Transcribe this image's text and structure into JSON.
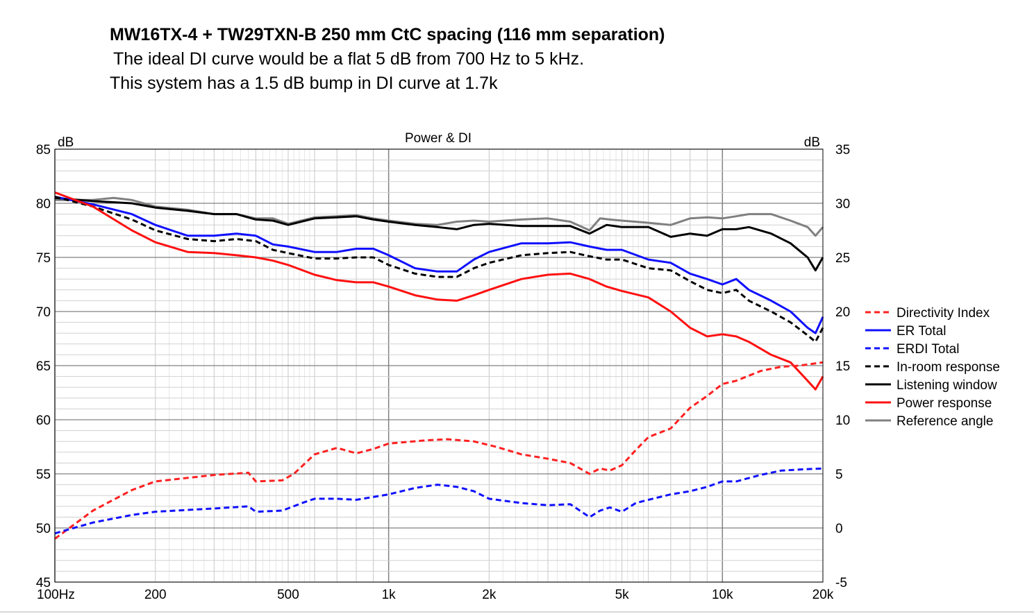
{
  "header": {
    "title": "MW16TX-4 + TW29TXN-B  250 mm CtC spacing  (116 mm separation)",
    "subtitle1": " The ideal DI curve would be a flat 5 dB from 700 Hz to 5 kHz.",
    "subtitle2": "This system has a 1.5 dB bump in DI curve at 1.7k"
  },
  "chart_data": {
    "type": "line",
    "title": "Power & DI",
    "xlabel": "",
    "ylabel": "dB",
    "ylabel_right": "dB",
    "xscale": "log",
    "xlim": [
      100,
      20000
    ],
    "ylim": [
      45,
      85
    ],
    "ylim_right": [
      -5,
      35
    ],
    "grid": true,
    "legend_position": "right",
    "x_ticks": [
      {
        "value": 100,
        "label": "100Hz"
      },
      {
        "value": 200,
        "label": "200"
      },
      {
        "value": 500,
        "label": "500"
      },
      {
        "value": 1000,
        "label": "1k"
      },
      {
        "value": 2000,
        "label": "2k"
      },
      {
        "value": 5000,
        "label": "5k"
      },
      {
        "value": 10000,
        "label": "10k"
      },
      {
        "value": 20000,
        "label": "20k"
      }
    ],
    "y_ticks_left": [
      {
        "value": 85,
        "label": "85"
      },
      {
        "value": 80,
        "label": "80"
      },
      {
        "value": 75,
        "label": "75"
      },
      {
        "value": 70,
        "label": "70"
      },
      {
        "value": 65,
        "label": "65"
      },
      {
        "value": 60,
        "label": "60"
      },
      {
        "value": 55,
        "label": "55"
      },
      {
        "value": 50,
        "label": "50"
      },
      {
        "value": 45,
        "label": "45"
      }
    ],
    "y_ticks_right": [
      {
        "value": 35,
        "label": "35"
      },
      {
        "value": 30,
        "label": "30"
      },
      {
        "value": 25,
        "label": "25"
      },
      {
        "value": 20,
        "label": "20"
      },
      {
        "value": 15,
        "label": "15"
      },
      {
        "value": 10,
        "label": "10"
      },
      {
        "value": 5,
        "label": "5"
      },
      {
        "value": 0,
        "label": "0"
      },
      {
        "value": -5,
        "label": "-5"
      }
    ],
    "series": [
      {
        "name": "Directivity Index",
        "axis": "right",
        "color": "#ff2020",
        "dash": true,
        "width": 3,
        "points": [
          [
            100,
            -1
          ],
          [
            130,
            1.6
          ],
          [
            170,
            3.5
          ],
          [
            200,
            4.3
          ],
          [
            300,
            4.9
          ],
          [
            380,
            5.1
          ],
          [
            400,
            4.3
          ],
          [
            480,
            4.4
          ],
          [
            520,
            5
          ],
          [
            600,
            6.8
          ],
          [
            700,
            7.4
          ],
          [
            800,
            6.9
          ],
          [
            900,
            7.3
          ],
          [
            1000,
            7.8
          ],
          [
            1300,
            8.1
          ],
          [
            1500,
            8.2
          ],
          [
            1800,
            8
          ],
          [
            2100,
            7.5
          ],
          [
            2500,
            6.8
          ],
          [
            3000,
            6.4
          ],
          [
            3500,
            6
          ],
          [
            4000,
            5
          ],
          [
            4300,
            5.5
          ],
          [
            4600,
            5.3
          ],
          [
            5000,
            5.8
          ],
          [
            5500,
            7.2
          ],
          [
            6000,
            8.4
          ],
          [
            7000,
            9.2
          ],
          [
            8000,
            11.1
          ],
          [
            9000,
            12.2
          ],
          [
            10000,
            13.3
          ],
          [
            11000,
            13.6
          ],
          [
            13000,
            14.5
          ],
          [
            15000,
            14.9
          ],
          [
            17000,
            15
          ],
          [
            20000,
            15.3
          ]
        ]
      },
      {
        "name": "ER Total",
        "axis": "left",
        "color": "#1010ff",
        "dash": false,
        "width": 3,
        "points": [
          [
            100,
            80.6
          ],
          [
            130,
            79.9
          ],
          [
            170,
            79
          ],
          [
            200,
            78
          ],
          [
            250,
            77
          ],
          [
            300,
            77
          ],
          [
            350,
            77.2
          ],
          [
            400,
            77
          ],
          [
            450,
            76.2
          ],
          [
            500,
            76
          ],
          [
            600,
            75.5
          ],
          [
            700,
            75.5
          ],
          [
            800,
            75.8
          ],
          [
            900,
            75.8
          ],
          [
            1000,
            75.2
          ],
          [
            1200,
            74
          ],
          [
            1400,
            73.7
          ],
          [
            1600,
            73.7
          ],
          [
            1800,
            74.8
          ],
          [
            2000,
            75.5
          ],
          [
            2500,
            76.3
          ],
          [
            3000,
            76.3
          ],
          [
            3500,
            76.4
          ],
          [
            4000,
            76
          ],
          [
            4500,
            75.7
          ],
          [
            5000,
            75.7
          ],
          [
            6000,
            74.8
          ],
          [
            7000,
            74.5
          ],
          [
            8000,
            73.5
          ],
          [
            9000,
            73
          ],
          [
            10000,
            72.5
          ],
          [
            11000,
            73
          ],
          [
            12000,
            72
          ],
          [
            14000,
            71
          ],
          [
            16000,
            70
          ],
          [
            18000,
            68.5
          ],
          [
            19000,
            68
          ],
          [
            20000,
            69.5
          ]
        ]
      },
      {
        "name": "ERDI Total",
        "axis": "right",
        "color": "#1010ff",
        "dash": true,
        "width": 3,
        "points": [
          [
            100,
            -0.5
          ],
          [
            130,
            0.5
          ],
          [
            170,
            1.2
          ],
          [
            200,
            1.5
          ],
          [
            300,
            1.8
          ],
          [
            380,
            2
          ],
          [
            400,
            1.5
          ],
          [
            480,
            1.6
          ],
          [
            550,
            2.3
          ],
          [
            600,
            2.7
          ],
          [
            700,
            2.7
          ],
          [
            800,
            2.6
          ],
          [
            1000,
            3.1
          ],
          [
            1200,
            3.7
          ],
          [
            1400,
            4
          ],
          [
            1600,
            3.8
          ],
          [
            1800,
            3.4
          ],
          [
            2000,
            2.7
          ],
          [
            2500,
            2.3
          ],
          [
            3000,
            2.1
          ],
          [
            3500,
            2.2
          ],
          [
            4000,
            1
          ],
          [
            4300,
            1.6
          ],
          [
            4600,
            1.9
          ],
          [
            5000,
            1.5
          ],
          [
            5500,
            2.3
          ],
          [
            6000,
            2.6
          ],
          [
            7000,
            3.1
          ],
          [
            8000,
            3.4
          ],
          [
            9000,
            3.8
          ],
          [
            10000,
            4.3
          ],
          [
            11000,
            4.3
          ],
          [
            13000,
            4.9
          ],
          [
            15000,
            5.3
          ],
          [
            17000,
            5.4
          ],
          [
            20000,
            5.5
          ]
        ]
      },
      {
        "name": "In-room response",
        "axis": "left",
        "color": "#000000",
        "dash": true,
        "width": 3,
        "points": [
          [
            100,
            80.6
          ],
          [
            130,
            79.7
          ],
          [
            170,
            78.5
          ],
          [
            200,
            77.5
          ],
          [
            250,
            76.7
          ],
          [
            300,
            76.5
          ],
          [
            350,
            76.7
          ],
          [
            400,
            76.5
          ],
          [
            450,
            75.7
          ],
          [
            500,
            75.4
          ],
          [
            600,
            74.9
          ],
          [
            700,
            74.9
          ],
          [
            800,
            75
          ],
          [
            900,
            75
          ],
          [
            1000,
            74.3
          ],
          [
            1200,
            73.5
          ],
          [
            1400,
            73.2
          ],
          [
            1600,
            73.2
          ],
          [
            1800,
            74
          ],
          [
            2000,
            74.5
          ],
          [
            2500,
            75.2
          ],
          [
            3000,
            75.4
          ],
          [
            3500,
            75.5
          ],
          [
            4000,
            75.1
          ],
          [
            4500,
            74.8
          ],
          [
            5000,
            74.8
          ],
          [
            6000,
            74
          ],
          [
            7000,
            73.8
          ],
          [
            8000,
            72.8
          ],
          [
            9000,
            72
          ],
          [
            10000,
            71.7
          ],
          [
            11000,
            72
          ],
          [
            12000,
            71
          ],
          [
            14000,
            70
          ],
          [
            16000,
            69
          ],
          [
            18000,
            67.8
          ],
          [
            19000,
            67.2
          ],
          [
            20000,
            68.5
          ]
        ]
      },
      {
        "name": "Listening window",
        "axis": "left",
        "color": "#000000",
        "dash": false,
        "width": 3,
        "points": [
          [
            100,
            80.5
          ],
          [
            130,
            80.2
          ],
          [
            170,
            80
          ],
          [
            200,
            79.6
          ],
          [
            250,
            79.3
          ],
          [
            300,
            79
          ],
          [
            350,
            79
          ],
          [
            400,
            78.5
          ],
          [
            450,
            78.4
          ],
          [
            500,
            78
          ],
          [
            600,
            78.6
          ],
          [
            700,
            78.7
          ],
          [
            800,
            78.8
          ],
          [
            900,
            78.5
          ],
          [
            1000,
            78.3
          ],
          [
            1200,
            78
          ],
          [
            1400,
            77.8
          ],
          [
            1600,
            77.6
          ],
          [
            1800,
            78
          ],
          [
            2000,
            78.1
          ],
          [
            2500,
            77.9
          ],
          [
            3000,
            77.9
          ],
          [
            3500,
            77.9
          ],
          [
            4000,
            77.2
          ],
          [
            4500,
            78
          ],
          [
            5000,
            77.8
          ],
          [
            6000,
            77.8
          ],
          [
            7000,
            76.9
          ],
          [
            8000,
            77.2
          ],
          [
            9000,
            77
          ],
          [
            10000,
            77.6
          ],
          [
            11000,
            77.6
          ],
          [
            12000,
            77.8
          ],
          [
            14000,
            77.2
          ],
          [
            16000,
            76.3
          ],
          [
            18000,
            75
          ],
          [
            19000,
            73.8
          ],
          [
            20000,
            75
          ]
        ]
      },
      {
        "name": "Power response",
        "axis": "left",
        "color": "#ff1010",
        "dash": false,
        "width": 3,
        "points": [
          [
            100,
            81
          ],
          [
            130,
            79.7
          ],
          [
            170,
            77.5
          ],
          [
            200,
            76.4
          ],
          [
            250,
            75.5
          ],
          [
            300,
            75.4
          ],
          [
            350,
            75.2
          ],
          [
            400,
            75
          ],
          [
            450,
            74.7
          ],
          [
            500,
            74.3
          ],
          [
            600,
            73.4
          ],
          [
            700,
            72.9
          ],
          [
            800,
            72.7
          ],
          [
            900,
            72.7
          ],
          [
            1000,
            72.3
          ],
          [
            1200,
            71.5
          ],
          [
            1400,
            71.1
          ],
          [
            1600,
            71
          ],
          [
            1800,
            71.5
          ],
          [
            2000,
            72
          ],
          [
            2500,
            73
          ],
          [
            3000,
            73.4
          ],
          [
            3500,
            73.5
          ],
          [
            4000,
            73
          ],
          [
            4500,
            72.3
          ],
          [
            5000,
            71.9
          ],
          [
            6000,
            71.3
          ],
          [
            7000,
            70
          ],
          [
            8000,
            68.5
          ],
          [
            9000,
            67.7
          ],
          [
            10000,
            67.9
          ],
          [
            11000,
            67.7
          ],
          [
            12000,
            67.2
          ],
          [
            14000,
            66
          ],
          [
            16000,
            65.3
          ],
          [
            18000,
            63.6
          ],
          [
            19000,
            62.8
          ],
          [
            20000,
            64
          ]
        ]
      },
      {
        "name": "Reference angle",
        "axis": "left",
        "color": "#808080",
        "dash": false,
        "width": 3,
        "points": [
          [
            100,
            80.3
          ],
          [
            130,
            80.3
          ],
          [
            150,
            80.5
          ],
          [
            170,
            80.3
          ],
          [
            200,
            79.7
          ],
          [
            250,
            79.4
          ],
          [
            300,
            79
          ],
          [
            350,
            79
          ],
          [
            400,
            78.6
          ],
          [
            450,
            78.6
          ],
          [
            500,
            78.1
          ],
          [
            600,
            78.7
          ],
          [
            700,
            78.8
          ],
          [
            800,
            78.9
          ],
          [
            900,
            78.6
          ],
          [
            1000,
            78.4
          ],
          [
            1200,
            78.1
          ],
          [
            1400,
            78
          ],
          [
            1600,
            78.3
          ],
          [
            1800,
            78.4
          ],
          [
            2000,
            78.3
          ],
          [
            2500,
            78.5
          ],
          [
            3000,
            78.6
          ],
          [
            3500,
            78.3
          ],
          [
            4000,
            77.5
          ],
          [
            4300,
            78.6
          ],
          [
            4600,
            78.5
          ],
          [
            5000,
            78.4
          ],
          [
            6000,
            78.2
          ],
          [
            7000,
            78
          ],
          [
            8000,
            78.6
          ],
          [
            9000,
            78.7
          ],
          [
            10000,
            78.6
          ],
          [
            11000,
            78.8
          ],
          [
            12000,
            79
          ],
          [
            14000,
            79
          ],
          [
            16000,
            78.4
          ],
          [
            18000,
            77.8
          ],
          [
            19000,
            77
          ],
          [
            20000,
            77.8
          ]
        ]
      }
    ]
  }
}
